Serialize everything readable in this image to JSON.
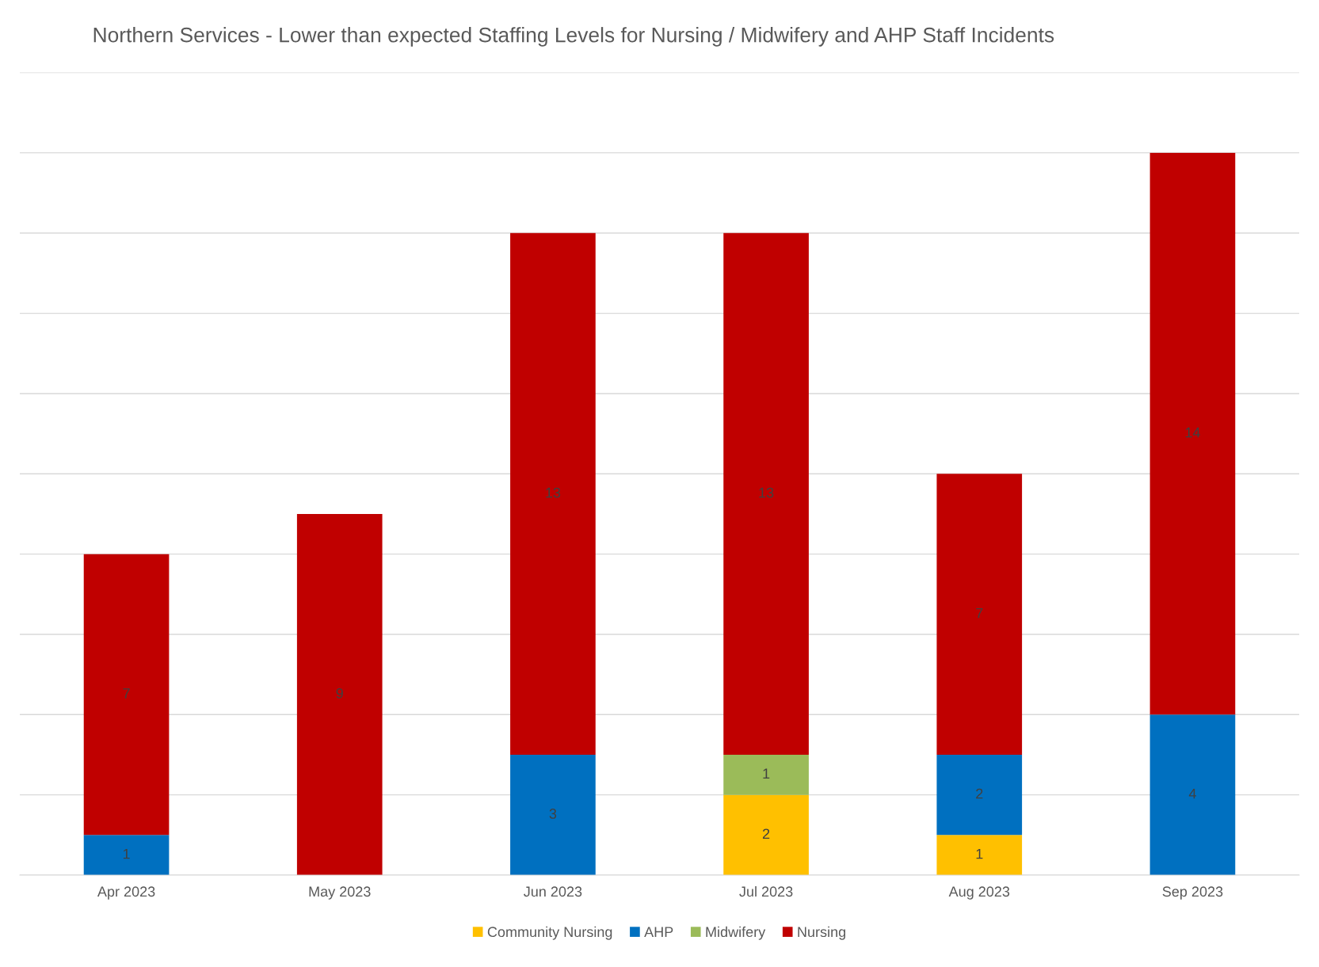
{
  "chart_data": {
    "type": "bar",
    "title": "Northern Services - Lower than expected Staffing Levels for Nursing / Midwifery and AHP Staff Incidents",
    "categories": [
      "Apr 2023",
      "May 2023",
      "Jun 2023",
      "Jul 2023",
      "Aug 2023",
      "Sep 2023"
    ],
    "series": [
      {
        "name": "Community Nursing",
        "color": "#ffc000",
        "values": [
          null,
          null,
          null,
          2,
          1,
          null
        ]
      },
      {
        "name": "AHP",
        "color": "#0070c0",
        "values": [
          1,
          null,
          3,
          null,
          2,
          4
        ]
      },
      {
        "name": "Midwifery",
        "color": "#9bbb59",
        "values": [
          null,
          null,
          null,
          1,
          null,
          null
        ]
      },
      {
        "name": "Nursing",
        "color": "#c00000",
        "values": [
          7,
          9,
          13,
          13,
          7,
          14
        ]
      }
    ],
    "stacked": true,
    "data_labels": true,
    "ylim": [
      0,
      20
    ],
    "yticks": [
      0,
      2,
      4,
      6,
      8,
      10,
      12,
      14,
      16,
      18,
      20
    ],
    "tick_labels": "x",
    "grid": "y",
    "legend": "bottom"
  }
}
